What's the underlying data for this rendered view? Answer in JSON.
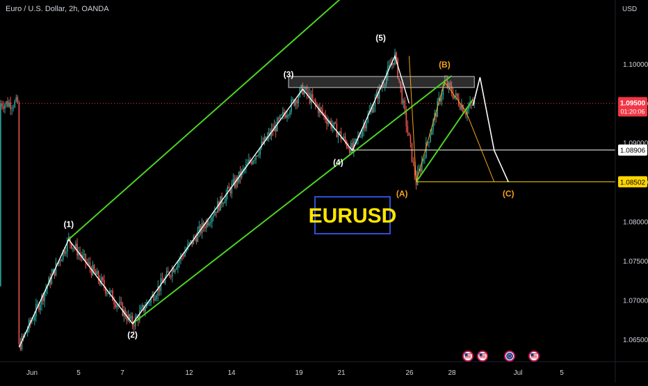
{
  "header": {
    "symbol_title": "Euro / U.S. Dollar, 2h, OANDA",
    "currency": "USD"
  },
  "watermark": "EURUSD",
  "colors": {
    "bg": "#000000",
    "up": "#26a69a",
    "down": "#ef5350",
    "channel": "#4cd424",
    "impulse": "#ffffff",
    "corrective": "#f7a21b",
    "box": "#c8c8c8",
    "axis_text": "#d1d4dc",
    "price_label_bg": "#f23645",
    "level_a": "#ffd600"
  },
  "chart_data": {
    "type": "candlestick",
    "title": "Euro / U.S. Dollar, 2h, OANDA",
    "x_ticks": [
      "Jun",
      "5",
      "7",
      "12",
      "14",
      "19",
      "21",
      "26",
      "28",
      "Jul",
      "5"
    ],
    "y_ticks": [
      "1.10000",
      "1.09500",
      "1.09000",
      "1.08500",
      "1.08000",
      "1.07500",
      "1.07000",
      "1.06500"
    ],
    "ylim": [
      1.0635,
      1.1075
    ],
    "current_price": {
      "value": "1.09500",
      "countdown": "01:20:06"
    },
    "levels": [
      {
        "value": 1.08906,
        "label": "1.08906",
        "style": "white"
      },
      {
        "value": 1.08502,
        "label": "1.08502",
        "style": "yellow"
      }
    ],
    "wave_labels": [
      "(1)",
      "(2)",
      "(3)",
      "(4)",
      "(5)",
      "(A)",
      "(B)",
      "(C)"
    ],
    "impulse_wave": [
      {
        "t": 2,
        "p": 1.064
      },
      {
        "t": 9,
        "p": 1.0777
      },
      {
        "t": 18,
        "p": 1.067
      },
      {
        "t": 42,
        "p": 1.0968
      },
      {
        "t": 49,
        "p": 1.089
      },
      {
        "t": 55,
        "p": 1.101
      },
      {
        "t": 57,
        "p": 1.095
      }
    ],
    "abc_wave": [
      {
        "t": 57,
        "p": 1.101
      },
      {
        "t": 58,
        "p": 1.085
      },
      {
        "t": 62,
        "p": 1.0977
      },
      {
        "t": 65,
        "p": 1.094
      },
      {
        "t": 69,
        "p": 1.085
      }
    ],
    "forecast_path": [
      {
        "t": 66,
        "p": 1.0947
      },
      {
        "t": 67,
        "p": 1.0983
      },
      {
        "t": 69,
        "p": 1.089
      },
      {
        "t": 71,
        "p": 1.085
      }
    ],
    "channel_lines": [
      [
        {
          "t": 9,
          "p": 1.0777
        },
        {
          "t": 52,
          "p": 1.112
        }
      ],
      [
        {
          "t": 18,
          "p": 1.067
        },
        {
          "t": 63,
          "p": 1.0985
        }
      ],
      [
        {
          "t": 58,
          "p": 1.085
        },
        {
          "t": 66,
          "p": 1.0955
        }
      ]
    ],
    "resistance_box": {
      "p_top": 1.0984,
      "p_bottom": 1.097
    },
    "anchors": [
      {
        "t": 2,
        "p": 1.064
      },
      {
        "t": 9,
        "p": 1.0777
      },
      {
        "t": 18,
        "p": 1.067
      },
      {
        "t": 42,
        "p": 1.0968
      },
      {
        "t": 49,
        "p": 1.089
      },
      {
        "t": 55,
        "p": 1.101
      },
      {
        "t": 58,
        "p": 1.085
      },
      {
        "t": 62,
        "p": 1.0977
      },
      {
        "t": 65,
        "p": 1.094
      },
      {
        "t": 66,
        "p": 1.095
      }
    ]
  }
}
